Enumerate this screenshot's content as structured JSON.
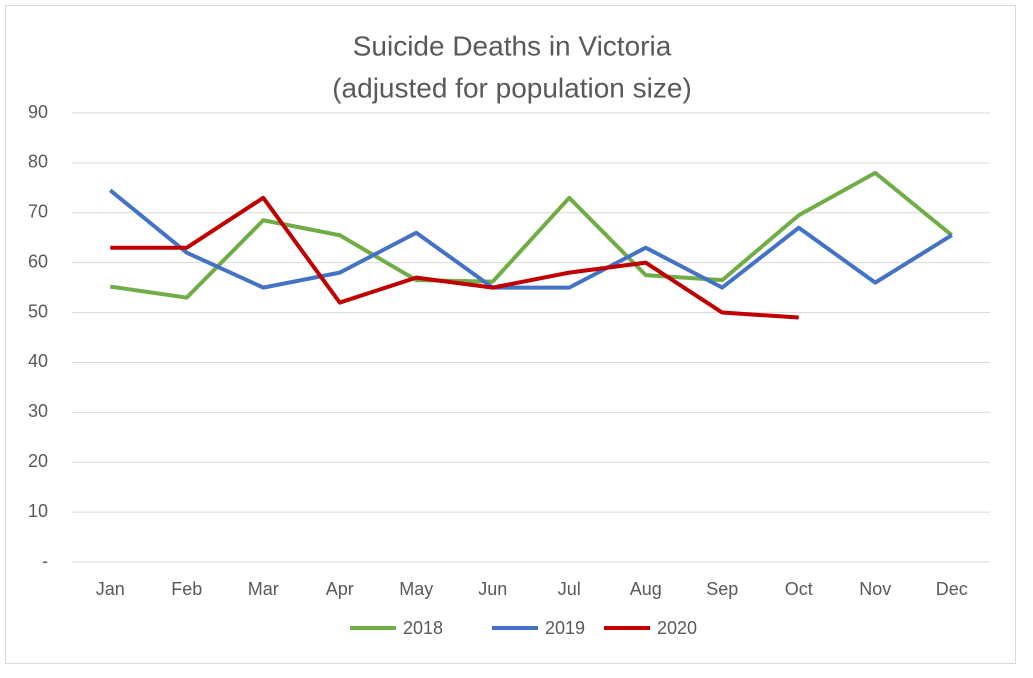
{
  "chart_data": {
    "type": "line",
    "title": "Suicide Deaths in Victoria",
    "subtitle": "(adjusted for population size)",
    "categories": [
      "Jan",
      "Feb",
      "Mar",
      "Apr",
      "May",
      "Jun",
      "Jul",
      "Aug",
      "Sep",
      "Oct",
      "Nov",
      "Dec"
    ],
    "series": [
      {
        "name": "2018",
        "color": "#70ad47",
        "values": [
          55.2,
          53,
          68.5,
          65.5,
          56.5,
          56.2,
          73,
          57.5,
          56.5,
          69.5,
          78,
          65.5
        ]
      },
      {
        "name": "2019",
        "color": "#4472c4",
        "values": [
          74.5,
          62,
          55,
          58,
          66,
          55,
          55,
          63,
          55,
          67,
          56,
          65.5
        ]
      },
      {
        "name": "2020",
        "color": "#c00000",
        "values": [
          63,
          63,
          73,
          52,
          57,
          55,
          58,
          60,
          50,
          49,
          null,
          null
        ]
      }
    ],
    "ylim": [
      0,
      90
    ],
    "yticks": [
      {
        "value": 0,
        "label": "-"
      },
      10,
      20,
      30,
      40,
      50,
      60,
      70,
      80,
      90
    ],
    "grid": true,
    "legend": "bottom"
  }
}
